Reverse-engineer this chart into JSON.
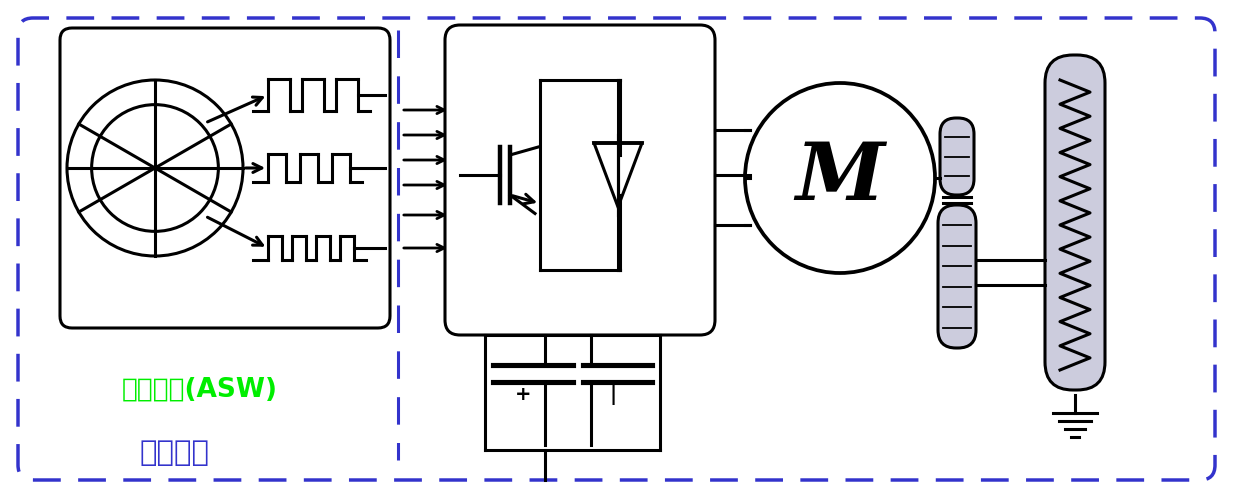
{
  "bg_color": "#ffffff",
  "outer_box_color": "#3333cc",
  "inner_box_color": "#000000",
  "text_asw_color": "#00ee00",
  "text_shangye_color": "#3333cc",
  "label_asw": "程序代码(ASW)",
  "label_shangye": "商用软件",
  "motor_label": "M",
  "gear_fill": "#ccccdd",
  "coil_fill": "#ccccdd"
}
